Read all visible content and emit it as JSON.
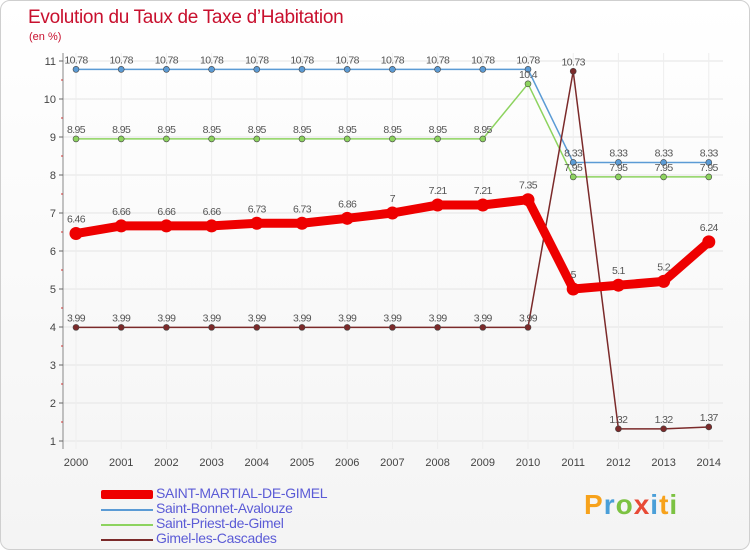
{
  "chart_data": {
    "type": "line",
    "title": "Evolution du Taux de Taxe d’Habitation",
    "subtitle": "(en %)",
    "xlabel": "",
    "ylabel": "",
    "x": [
      "2000",
      "2001",
      "2002",
      "2003",
      "2004",
      "2005",
      "2006",
      "2007",
      "2008",
      "2009",
      "2010",
      "2011",
      "2012",
      "2013",
      "2014"
    ],
    "ylim": [
      1,
      11
    ],
    "yticks": [
      "1",
      "2",
      "3",
      "4",
      "5",
      "6",
      "7",
      "8",
      "9",
      "10",
      "11"
    ],
    "grid": true,
    "series": [
      {
        "name": "Saint-Bonnet-Avalouze",
        "color": "#5b9bd5",
        "values": [
          10.78,
          10.78,
          10.78,
          10.78,
          10.78,
          10.78,
          10.78,
          10.78,
          10.78,
          10.78,
          10.78,
          8.33,
          8.33,
          8.33,
          8.33
        ],
        "labels": [
          "10.78",
          "10.78",
          "10.78",
          "10.78",
          "10.78",
          "10.78",
          "10.78",
          "10.78",
          "10.78",
          "10.78",
          "10.78",
          "8.33",
          "8.33",
          "8.33",
          "8.33"
        ]
      },
      {
        "name": "Saint-Priest-de-Gimel",
        "color": "#8dd35f",
        "values": [
          8.95,
          8.95,
          8.95,
          8.95,
          8.95,
          8.95,
          8.95,
          8.95,
          8.95,
          8.95,
          10.4,
          7.95,
          7.95,
          7.95,
          7.95
        ],
        "labels": [
          "8.95",
          "8.95",
          "8.95",
          "8.95",
          "8.95",
          "8.95",
          "8.95",
          "8.95",
          "8.95",
          "8.95",
          "10.4",
          "7.95",
          "7.95",
          "7.95",
          "7.95"
        ]
      },
      {
        "name": "Gimel-les-Cascades",
        "color": "#7b2a2a",
        "values": [
          3.99,
          3.99,
          3.99,
          3.99,
          3.99,
          3.99,
          3.99,
          3.99,
          3.99,
          3.99,
          3.99,
          10.73,
          1.32,
          1.32,
          1.37
        ],
        "labels": [
          "3.99",
          "3.99",
          "3.99",
          "3.99",
          "3.99",
          "3.99",
          "3.99",
          "3.99",
          "3.99",
          "3.99",
          "3.99",
          "10.73",
          "1.32",
          "1.32",
          "1.37"
        ]
      },
      {
        "name": "SAINT-MARTIAL-DE-GIMEL",
        "color": "#ee0000",
        "values": [
          6.46,
          6.66,
          6.66,
          6.66,
          6.73,
          6.73,
          6.86,
          7,
          7.21,
          7.21,
          7.35,
          5,
          5.1,
          5.2,
          6.24
        ],
        "labels": [
          "6.46",
          "6.66",
          "6.66",
          "6.66",
          "6.73",
          "6.73",
          "6.86",
          "7",
          "7.21",
          "7.21",
          "7.35",
          "5",
          "5.1",
          "5.2",
          "6.24"
        ]
      }
    ]
  },
  "legend": [
    {
      "name": "SAINT-MARTIAL-DE-GIMEL",
      "color": "#ee0000"
    },
    {
      "name": "Saint-Bonnet-Avalouze",
      "color": "#5b9bd5"
    },
    {
      "name": "Saint-Priest-de-Gimel",
      "color": "#8dd35f"
    },
    {
      "name": "Gimel-les-Cascades",
      "color": "#7b2a2a"
    }
  ],
  "logo": {
    "letters": [
      "P",
      "r",
      "o",
      "x",
      "i",
      "t",
      "i"
    ]
  }
}
